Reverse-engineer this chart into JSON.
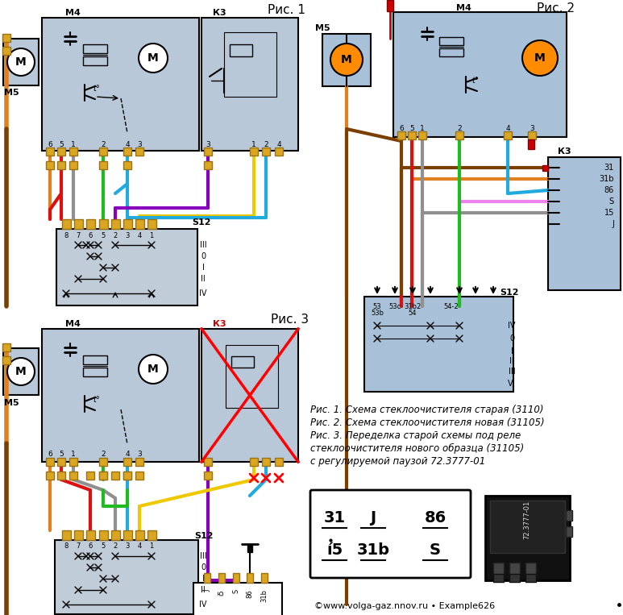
{
  "bg_color": "#ffffff",
  "fig1_label": "Рис. 1",
  "fig2_label": "Рис. 2",
  "fig3_label": "Рис. 3",
  "caption_lines": [
    "Рис. 1. Схема стеклоочистителя старая (3110)",
    "Рис. 2. Схема стеклоочистителя новая (31105)",
    "Рис. 3. Переделка старой схемы под реле",
    "стеклоочистителя нового образца (31105)",
    "с регулируемой паузой 72.3777-01"
  ],
  "watermark": "©www.volga-gaz.nnov.ru • Example626",
  "relay_row1": [
    "31",
    "J",
    "86"
  ],
  "relay_row2": [
    "í5",
    "31b",
    "S"
  ],
  "colors": {
    "orange": "#E08020",
    "red": "#DD1010",
    "gray": "#909090",
    "green": "#20BB20",
    "cyan": "#20AADD",
    "yellow": "#EEC900",
    "purple": "#8800BB",
    "brown": "#7B3F00",
    "pink": "#EE82EE",
    "comp_bg": "#B8C8D8",
    "comp_bg2": "#A8C0D8",
    "switch_bg": "#C0CCD8",
    "gold": "#DAA520",
    "gold_edge": "#9B7314"
  }
}
